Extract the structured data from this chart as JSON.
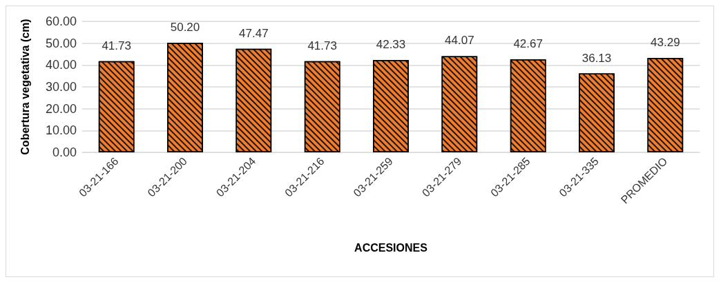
{
  "chart_data": {
    "type": "bar",
    "xlabel": "ACCESIONES",
    "ylabel": "Cobertura vegetativa (cm)",
    "categories": [
      "03-21-166",
      "03-21-200",
      "03-21-204",
      "03-21-216",
      "03-21-259",
      "03-21-279",
      "03-21-285",
      "03-21-335",
      "PROMEDIO"
    ],
    "values": [
      41.73,
      50.2,
      47.47,
      41.73,
      42.33,
      44.07,
      42.67,
      36.13,
      43.29
    ],
    "value_labels": [
      "41.73",
      "50.20",
      "47.47",
      "41.73",
      "42.33",
      "44.07",
      "42.67",
      "36.13",
      "43.29"
    ],
    "color": "#ed7d31",
    "ylim": [
      0,
      60
    ],
    "yticks": [
      {
        "value": 0,
        "label": "0.00"
      },
      {
        "value": 10,
        "label": "10.00"
      },
      {
        "value": 20,
        "label": "20.00"
      },
      {
        "value": 30,
        "label": "30.00"
      },
      {
        "value": 40,
        "label": "40.00"
      },
      {
        "value": 50,
        "label": "50.00"
      },
      {
        "value": 60,
        "label": "60.00"
      }
    ],
    "grid": "y"
  }
}
